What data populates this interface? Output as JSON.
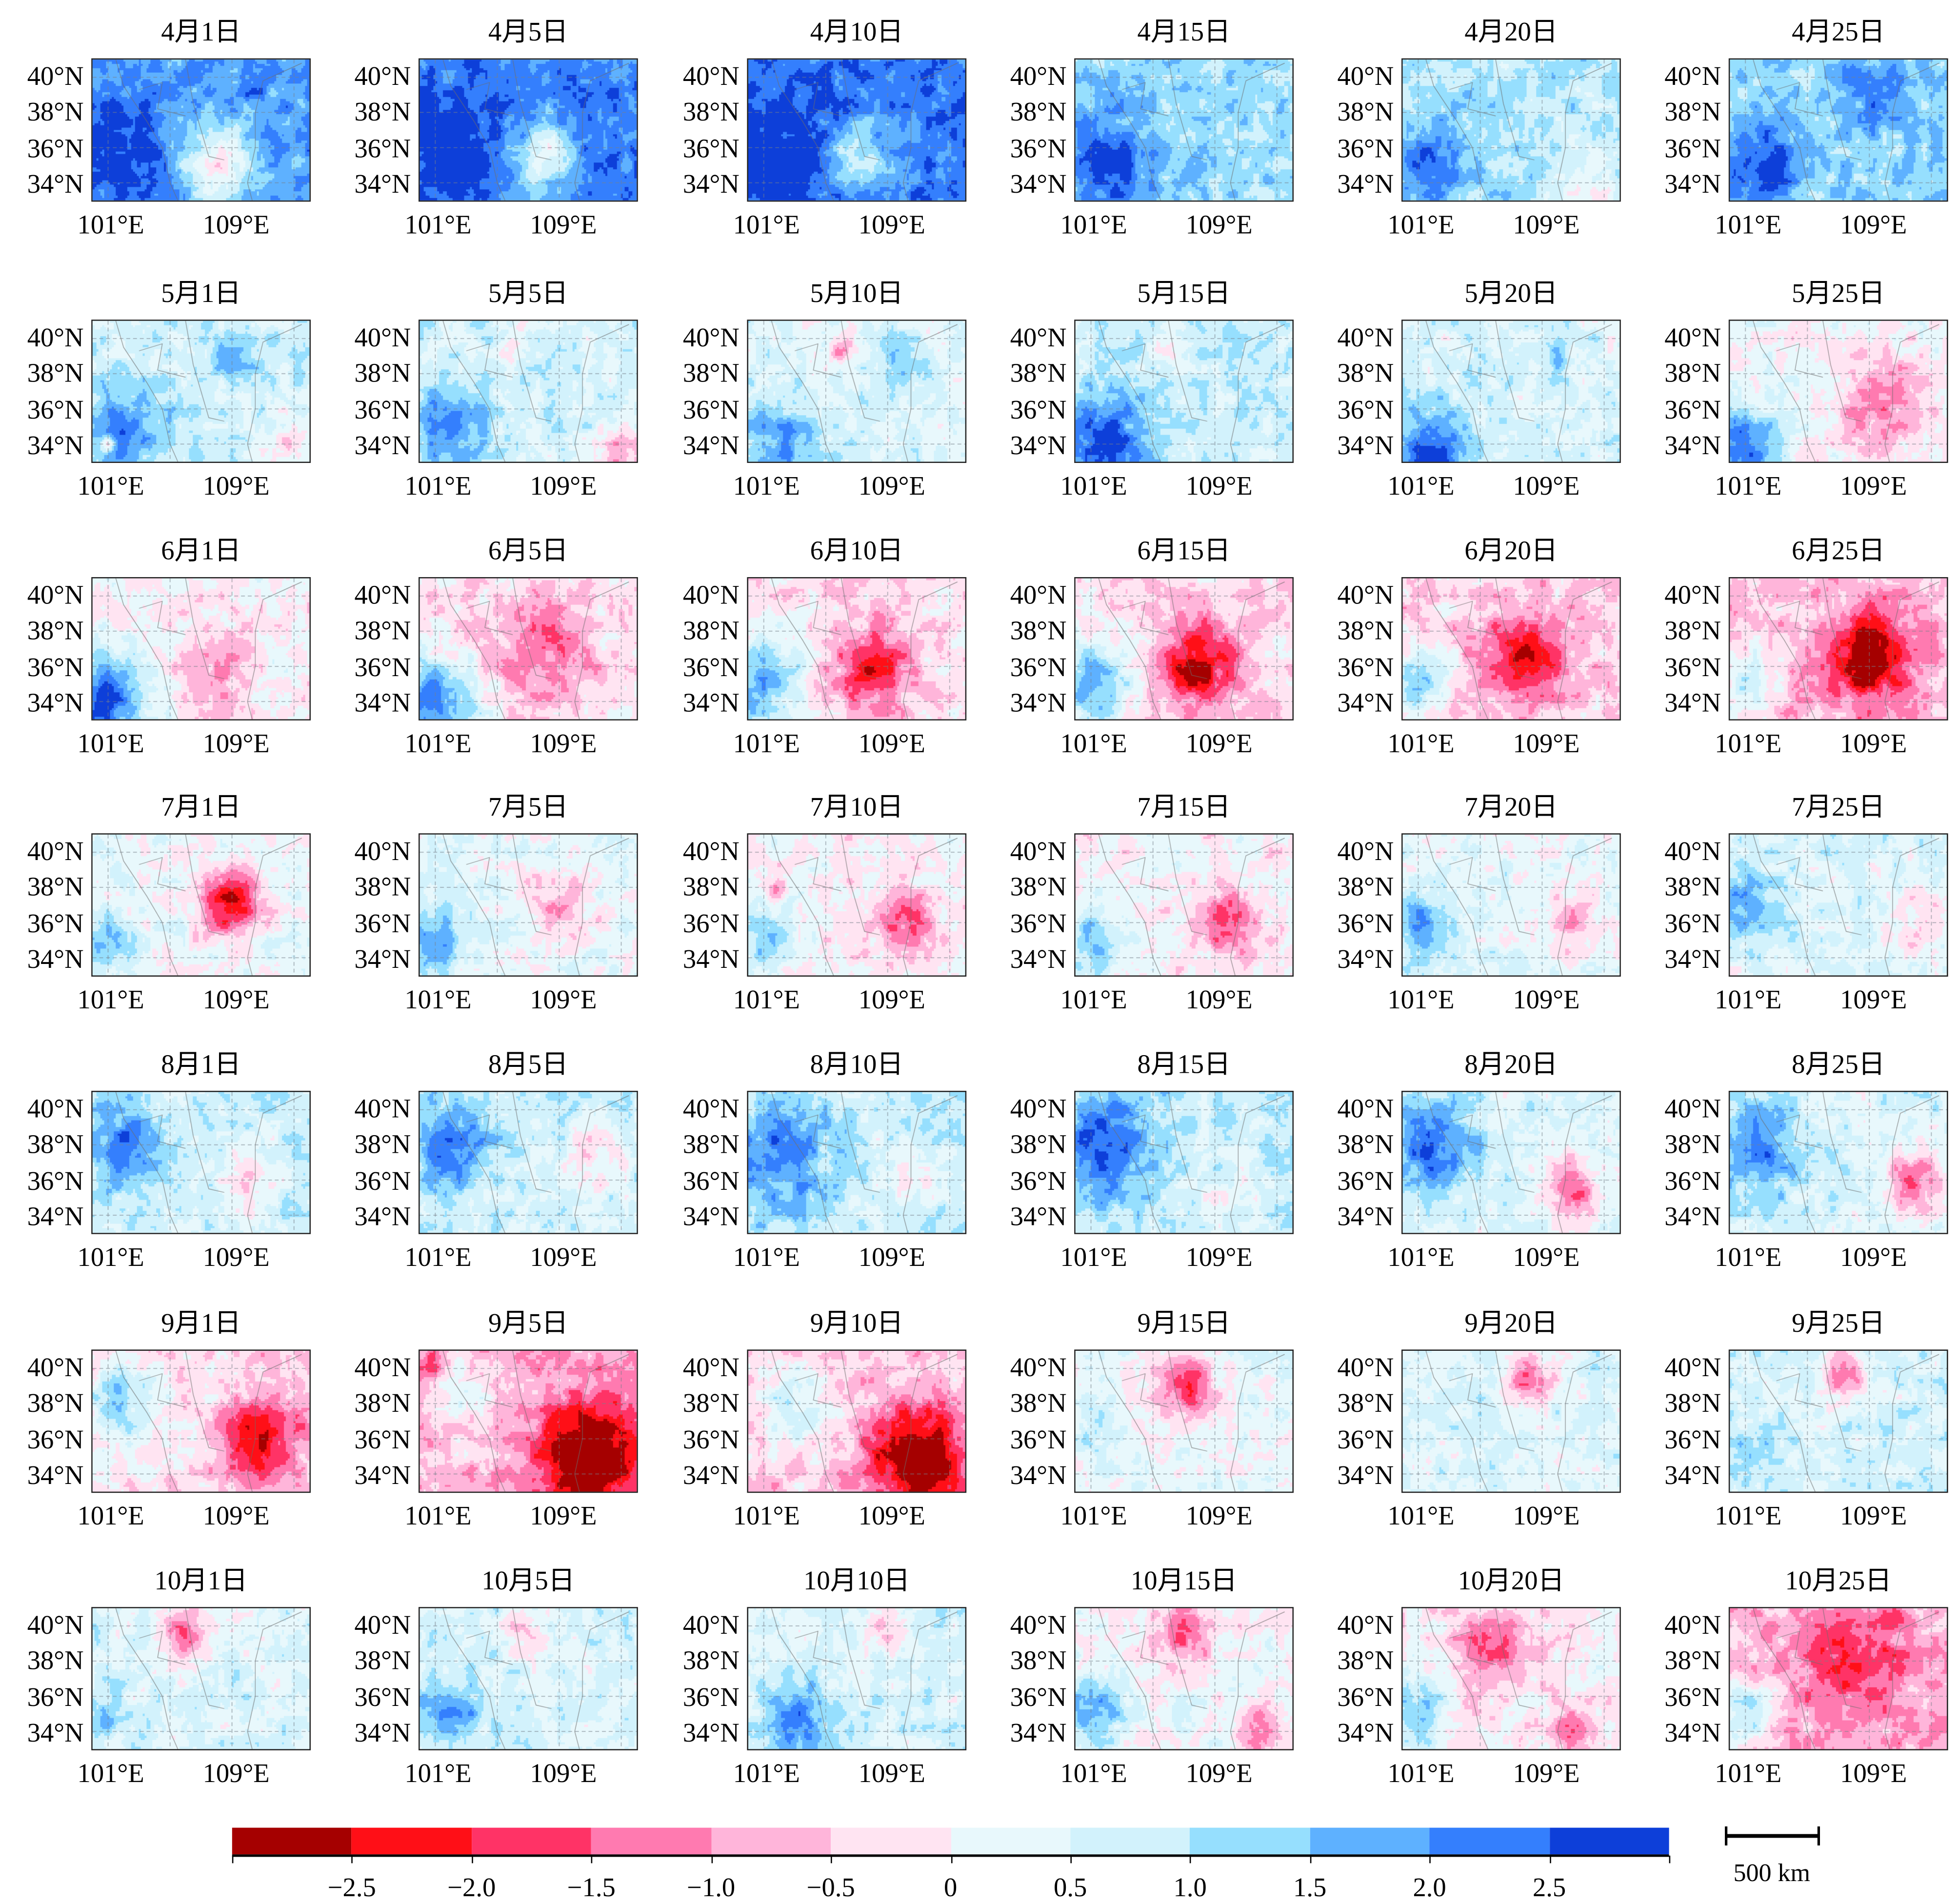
{
  "chart_data": {
    "type": "heatmap",
    "title": "",
    "xlabel": "",
    "ylabel": "",
    "extent": {
      "lon": [
        100,
        114
      ],
      "lat": [
        33,
        41
      ]
    },
    "gridlines": {
      "lon": [
        101,
        105,
        109,
        113
      ],
      "lat": [
        34,
        36,
        38,
        40
      ]
    },
    "lon_ticks": [
      "101°E",
      "109°E"
    ],
    "lat_ticks": [
      "40°N",
      "38°N",
      "36°N",
      "34°N"
    ],
    "colorbar": {
      "levels": [
        -3,
        -2.5,
        -2.0,
        -1.5,
        -1.0,
        -0.5,
        0,
        0.5,
        1.0,
        1.5,
        2.0,
        2.5,
        3
      ],
      "tick_labels": [
        "−2.5",
        "−2.0",
        "−1.5",
        "−1.0",
        "−0.5",
        "0",
        "0.5",
        "1.0",
        "1.5",
        "2.0",
        "2.5"
      ],
      "colors": [
        "#a50000",
        "#ff0f17",
        "#ff3366",
        "#ff7ab0",
        "#ffb5da",
        "#ffe4f2",
        "#e8f8fc",
        "#d2f2fc",
        "#96dffe",
        "#5eb1ff",
        "#347ffd",
        "#0d3fd9"
      ],
      "placement": "bottom"
    },
    "scale_bar": "500 km",
    "panels": [
      {
        "title": "4月1日",
        "base": 2.0,
        "blobs": [
          [
            102,
            35.5,
            1,
            3
          ],
          [
            108,
            35,
            -2,
            2.5
          ]
        ]
      },
      {
        "title": "4月5日",
        "base": 2.2,
        "blobs": [
          [
            102,
            35.5,
            1,
            3
          ],
          [
            108,
            35.5,
            -1.8,
            2
          ]
        ]
      },
      {
        "title": "4月10日",
        "base": 2.3,
        "blobs": [
          [
            102,
            35.5,
            1,
            3
          ],
          [
            107,
            35.5,
            -1.5,
            2
          ]
        ]
      },
      {
        "title": "4月15日",
        "base": 1.2,
        "blobs": [
          [
            102,
            35,
            1.5,
            3
          ]
        ]
      },
      {
        "title": "4月20日",
        "base": 1.0,
        "blobs": [
          [
            102,
            35,
            1.5,
            2.5
          ],
          [
            112,
            34,
            -1,
            2
          ]
        ]
      },
      {
        "title": "4月25日",
        "base": 1.3,
        "blobs": [
          [
            102,
            35,
            1.5,
            2.5
          ],
          [
            109,
            39,
            0.8,
            2
          ]
        ]
      },
      {
        "title": "5月1日",
        "base": 0.7,
        "blobs": [
          [
            102,
            34.5,
            1.5,
            2.5
          ],
          [
            109,
            39,
            1,
            1.5
          ],
          [
            113,
            34,
            -1.3,
            1.5
          ],
          [
            101,
            34,
            -2,
            0.5
          ]
        ]
      },
      {
        "title": "5月5日",
        "base": 0.6,
        "blobs": [
          [
            102,
            35,
            1.5,
            2.5
          ],
          [
            106,
            39.5,
            -1,
            1
          ],
          [
            113,
            33.5,
            -1.5,
            1.5
          ]
        ]
      },
      {
        "title": "5月10日",
        "base": 0.5,
        "blobs": [
          [
            102,
            34,
            1.5,
            2.5
          ],
          [
            106,
            39.5,
            -1.2,
            1
          ],
          [
            110,
            38.5,
            1,
            1.5
          ]
        ]
      },
      {
        "title": "5月15日",
        "base": 0.8,
        "blobs": [
          [
            102,
            34,
            2,
            2.5
          ],
          [
            106,
            39.5,
            -0.8,
            1
          ]
        ]
      },
      {
        "title": "5月20日",
        "base": 0.6,
        "blobs": [
          [
            102,
            33.5,
            2,
            2.5
          ],
          [
            110,
            39,
            0.8,
            1
          ]
        ]
      },
      {
        "title": "5月25日",
        "base": 0.1,
        "blobs": [
          [
            101,
            34,
            2.5,
            2
          ],
          [
            110,
            36,
            -1.2,
            3
          ]
        ]
      },
      {
        "title": "6月1日",
        "base": 0,
        "blobs": [
          [
            101,
            34,
            2.5,
            2.5
          ],
          [
            108,
            35.5,
            -1,
            2.5
          ]
        ]
      },
      {
        "title": "6月5日",
        "base": -0.2,
        "blobs": [
          [
            101,
            34,
            2.5,
            2.5
          ],
          [
            108,
            37,
            -1.2,
            3
          ]
        ]
      },
      {
        "title": "6月10日",
        "base": -0.2,
        "blobs": [
          [
            101,
            35,
            2,
            2.5
          ],
          [
            108,
            36,
            -1.8,
            2.5
          ]
        ]
      },
      {
        "title": "6月15日",
        "base": -0.3,
        "blobs": [
          [
            101,
            35,
            2,
            2.5
          ],
          [
            108,
            36,
            -2.2,
            2.5
          ]
        ]
      },
      {
        "title": "6月20日",
        "base": -0.4,
        "blobs": [
          [
            101,
            35,
            1.8,
            2
          ],
          [
            108,
            36.5,
            -2.2,
            2.5
          ]
        ]
      },
      {
        "title": "6月25日",
        "base": -0.6,
        "blobs": [
          [
            101,
            35,
            1.5,
            2
          ],
          [
            109,
            36.5,
            -2.5,
            2.5
          ]
        ]
      },
      {
        "title": "7月1日",
        "base": 0.2,
        "blobs": [
          [
            101,
            35,
            1.5,
            1.5
          ],
          [
            109,
            37,
            -2.8,
            1.8
          ]
        ]
      },
      {
        "title": "7月5日",
        "base": 0.3,
        "blobs": [
          [
            101,
            35,
            1.5,
            2
          ],
          [
            109,
            37,
            -1.3,
            2
          ]
        ]
      },
      {
        "title": "7月10日",
        "base": 0,
        "blobs": [
          [
            101,
            35,
            1.2,
            2
          ],
          [
            110,
            36,
            -1.5,
            2
          ],
          [
            102,
            38,
            -1.5,
            0.6
          ]
        ]
      },
      {
        "title": "7月15日",
        "base": 0,
        "blobs": [
          [
            101,
            35,
            1.5,
            2
          ],
          [
            110,
            36,
            -1.7,
            2
          ]
        ]
      },
      {
        "title": "7月20日",
        "base": 0.3,
        "blobs": [
          [
            101,
            36,
            1.4,
            2
          ],
          [
            111,
            36,
            -1,
            2
          ]
        ]
      },
      {
        "title": "7月25日",
        "base": 0.5,
        "blobs": [
          [
            101,
            37,
            1.4,
            2
          ],
          [
            112,
            36,
            -0.9,
            2
          ]
        ]
      },
      {
        "title": "8月1日",
        "base": 0.7,
        "blobs": [
          [
            102,
            38,
            1.5,
            2.5
          ],
          [
            110,
            36,
            -0.9,
            2
          ]
        ]
      },
      {
        "title": "8月5日",
        "base": 0.7,
        "blobs": [
          [
            102,
            38,
            1.6,
            2.5
          ],
          [
            111,
            37,
            -1,
            2
          ]
        ]
      },
      {
        "title": "8月10日",
        "base": 0.8,
        "blobs": [
          [
            102,
            37.5,
            1.4,
            3
          ],
          [
            110,
            36,
            -0.8,
            2
          ]
        ]
      },
      {
        "title": "8月15日",
        "base": 0.8,
        "blobs": [
          [
            102,
            38,
            1.8,
            3
          ],
          [
            110,
            35,
            -0.6,
            2
          ]
        ]
      },
      {
        "title": "8月20日",
        "base": 0.5,
        "blobs": [
          [
            102,
            38,
            1.8,
            3
          ],
          [
            111,
            35.5,
            -1.8,
            2
          ]
        ]
      },
      {
        "title": "8月25日",
        "base": 0.5,
        "blobs": [
          [
            102,
            38,
            1.6,
            3
          ],
          [
            112,
            36,
            -1.8,
            2
          ]
        ]
      },
      {
        "title": "9月1日",
        "base": -0.3,
        "blobs": [
          [
            102,
            38,
            1.5,
            2.5
          ],
          [
            111,
            36,
            -2.2,
            2.5
          ]
        ]
      },
      {
        "title": "9月5日",
        "base": -0.8,
        "blobs": [
          [
            103,
            38,
            1.0,
            2.5
          ],
          [
            111,
            35,
            -2.8,
            3
          ],
          [
            100.5,
            40,
            -1,
            1
          ]
        ]
      },
      {
        "title": "9月10日",
        "base": -0.5,
        "blobs": [
          [
            103,
            38,
            1.2,
            2.5
          ],
          [
            111,
            35,
            -2.8,
            3
          ]
        ]
      },
      {
        "title": "9月15日",
        "base": 0.3,
        "blobs": [
          [
            107,
            39,
            -2,
            2
          ],
          [
            101,
            36,
            0.6,
            1.5
          ]
        ]
      },
      {
        "title": "9月20日",
        "base": 0.5,
        "blobs": [
          [
            108,
            39.5,
            -2,
            1.5
          ]
        ]
      },
      {
        "title": "9月25日",
        "base": 0.6,
        "blobs": [
          [
            107.5,
            39.5,
            -2,
            1.5
          ],
          [
            101,
            35,
            0.8,
            1.5
          ]
        ]
      },
      {
        "title": "10月1日",
        "base": 0.5,
        "blobs": [
          [
            106,
            39.5,
            -1.8,
            1.5
          ],
          [
            101,
            35,
            0.8,
            1.5
          ]
        ]
      },
      {
        "title": "10月5日",
        "base": 0.6,
        "blobs": [
          [
            107,
            39.5,
            -1.3,
            1.5
          ],
          [
            102,
            35,
            1.4,
            2
          ]
        ]
      },
      {
        "title": "10月10日",
        "base": 0.6,
        "blobs": [
          [
            109,
            40,
            -1,
            1.5
          ],
          [
            103,
            34.5,
            1.8,
            2
          ]
        ]
      },
      {
        "title": "10月15日",
        "base": 0.2,
        "blobs": [
          [
            107,
            39.5,
            -1.6,
            2
          ],
          [
            101,
            35,
            1.6,
            2
          ],
          [
            112,
            34,
            -1.4,
            1.5
          ]
        ]
      },
      {
        "title": "10月20日",
        "base": 0,
        "blobs": [
          [
            106,
            39,
            -1.4,
            2.5
          ],
          [
            101,
            35,
            1.6,
            1.8
          ],
          [
            111,
            34,
            -1.8,
            1.5
          ]
        ]
      },
      {
        "title": "10月25日",
        "base": -0.8,
        "blobs": [
          [
            108,
            38,
            -1.2,
            3
          ],
          [
            101,
            35,
            2,
            1.8
          ]
        ]
      }
    ]
  }
}
